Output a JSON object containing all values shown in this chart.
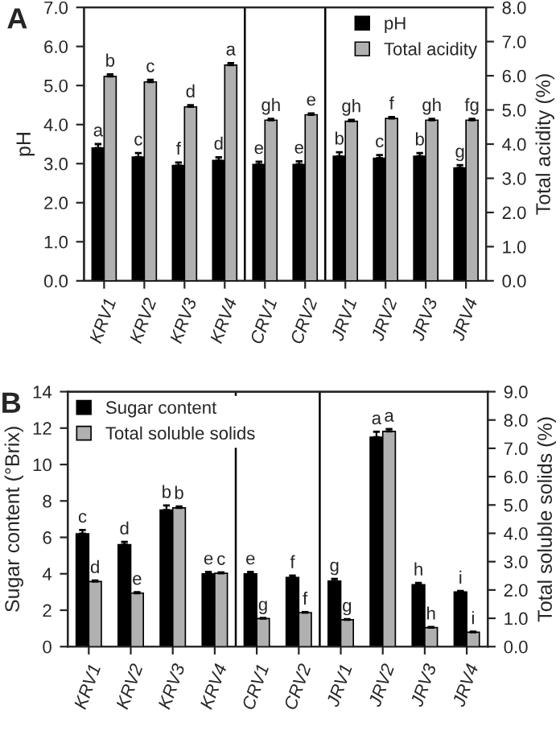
{
  "chart_data": [
    {
      "type": "bar",
      "title": "A",
      "ylabel": "pH",
      "y2label": "Total acidity (%)",
      "categories": [
        "KRV1",
        "KRV2",
        "KRV3",
        "KRV4",
        "CRV1",
        "CRV2",
        "JRV1",
        "JRV2",
        "JRV3",
        "JRV4"
      ],
      "series": [
        {
          "name": "pH",
          "color": "#000000",
          "values": [
            3.4,
            3.17,
            2.95,
            3.08,
            2.98,
            2.98,
            3.19,
            3.14,
            3.19,
            2.89
          ],
          "errors": [
            0.1,
            0.1,
            0.08,
            0.08,
            0.07,
            0.08,
            0.1,
            0.08,
            0.08,
            0.07
          ],
          "value_labels": [
            "a",
            "c",
            "f",
            "d",
            "e",
            "e",
            "b",
            "c",
            "b",
            "g"
          ]
        },
        {
          "name": "Total acidity",
          "color": "#b0b0b0",
          "axis": "y2",
          "values": [
            5.98,
            5.82,
            5.09,
            6.31,
            4.7,
            4.86,
            4.67,
            4.75,
            4.7,
            4.7
          ],
          "errors": [
            0.06,
            0.06,
            0.05,
            0.06,
            0.04,
            0.04,
            0.04,
            0.04,
            0.04,
            0.04
          ],
          "value_labels": [
            "b",
            "c",
            "d",
            "a",
            "gh",
            "e",
            "gh",
            "f",
            "gh",
            "fg"
          ]
        }
      ],
      "ylim": [
        0,
        7
      ],
      "yticks": [
        {
          "value": 0,
          "label": "0.0"
        },
        {
          "value": 1,
          "label": "1.0"
        },
        {
          "value": 2,
          "label": "2.0"
        },
        {
          "value": 3,
          "label": "3.0"
        },
        {
          "value": 4,
          "label": "4.0"
        },
        {
          "value": 5,
          "label": "5.0"
        },
        {
          "value": 6,
          "label": "6.0"
        },
        {
          "value": 7,
          "label": "7.0"
        }
      ],
      "y2lim": [
        0,
        8
      ],
      "y2ticks": [
        {
          "value": 0,
          "label": "0.0"
        },
        {
          "value": 1,
          "label": "1.0"
        },
        {
          "value": 2,
          "label": "2.0"
        },
        {
          "value": 3,
          "label": "3.0"
        },
        {
          "value": 4,
          "label": "4.0"
        },
        {
          "value": 5,
          "label": "5.0"
        },
        {
          "value": 6,
          "label": "6.0"
        },
        {
          "value": 7,
          "label": "7.0"
        },
        {
          "value": 8,
          "label": "8.0"
        }
      ],
      "legend": "top right",
      "grid": false
    },
    {
      "type": "bar",
      "title": "B",
      "ylabel": "Sugar content (°Brix)",
      "y2label": "Total soluble solids (%)",
      "categories": [
        "KRV1",
        "KRV2",
        "KRV3",
        "KRV4",
        "CRV1",
        "CRV2",
        "JRV1",
        "JRV2",
        "JRV3",
        "JRV4"
      ],
      "series": [
        {
          "name": "Sugar content",
          "color": "#000000",
          "values": [
            6.2,
            5.6,
            7.5,
            4.0,
            4.0,
            3.8,
            3.6,
            11.5,
            3.4,
            3.0
          ],
          "errors": [
            0.2,
            0.15,
            0.25,
            0.1,
            0.1,
            0.1,
            0.12,
            0.3,
            0.1,
            0.05
          ],
          "value_labels": [
            "c",
            "d",
            "b",
            "e",
            "e",
            "f",
            "g",
            "a",
            "h",
            "i"
          ]
        },
        {
          "name": "Total soluble solids",
          "color": "#b0b0b0",
          "axis": "y2",
          "values": [
            2.3,
            1.89,
            4.9,
            2.59,
            0.99,
            1.2,
            0.95,
            7.6,
            0.67,
            0.51
          ],
          "errors": [
            0.03,
            0.03,
            0.05,
            0.03,
            0.02,
            0.02,
            0.02,
            0.08,
            0.02,
            0.02
          ],
          "value_labels": [
            "d",
            "e",
            "b",
            "c",
            "g",
            "f",
            "g",
            "a",
            "h",
            "i"
          ]
        }
      ],
      "ylim": [
        0,
        14
      ],
      "yticks": [
        0,
        2,
        4,
        6,
        8,
        10,
        12,
        14
      ],
      "y2lim": [
        0,
        9
      ],
      "y2ticks": [
        {
          "value": 0,
          "label": "0.0"
        },
        {
          "value": 1,
          "label": "1.0"
        },
        {
          "value": 2,
          "label": "2.0"
        },
        {
          "value": 3,
          "label": "3.0"
        },
        {
          "value": 4,
          "label": "4.0"
        },
        {
          "value": 5,
          "label": "5.0"
        },
        {
          "value": 6,
          "label": "6.0"
        },
        {
          "value": 7,
          "label": "7.0"
        },
        {
          "value": 8,
          "label": "8.0"
        },
        {
          "value": 9,
          "label": "9.0"
        }
      ],
      "legend": "top left",
      "grid": false
    }
  ]
}
